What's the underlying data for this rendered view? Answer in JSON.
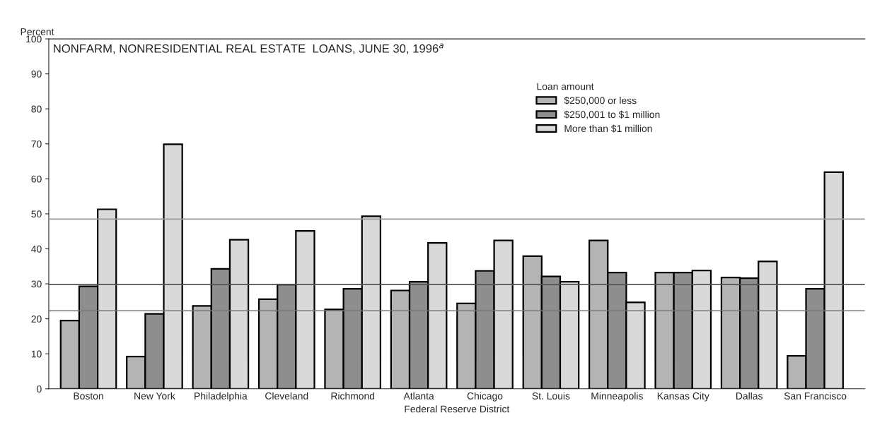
{
  "chart_data": {
    "type": "bar",
    "title": "NONFARM, NONRESIDENTIAL REAL ESTATE  LOANS, JUNE 30, 1996$^{a}$",
    "xlabel": "Federal Reserve District",
    "ylabel": "Percent",
    "legend_title": "Loan amount",
    "categories": [
      "Boston",
      "New York",
      "Philadelphia",
      "Cleveland",
      "Richmond",
      "Atlanta",
      "Chicago",
      "St. Louis",
      "Minneapolis",
      "Kansas City",
      "Dallas",
      "San Francisco"
    ],
    "series": [
      {
        "name": "$250,000 or less",
        "color": "#b4b4b4",
        "values": [
          19.5,
          9.2,
          23.7,
          25.6,
          22.7,
          28.1,
          24.4,
          37.9,
          42.4,
          33.2,
          31.8,
          9.4
        ]
      },
      {
        "name": "$250,001 to $1 million",
        "color": "#8e8e8e",
        "values": [
          29.3,
          21.4,
          34.3,
          29.8,
          28.6,
          30.6,
          33.7,
          32.1,
          33.2,
          33.2,
          31.6,
          28.6
        ]
      },
      {
        "name": "More than $1 million",
        "color": "#d9d9d9",
        "values": [
          51.3,
          69.9,
          42.6,
          45.1,
          49.3,
          41.7,
          42.4,
          30.6,
          24.7,
          33.8,
          36.4,
          61.9
        ]
      }
    ],
    "ref_lines": [
      {
        "axis": "y",
        "value": 48.5,
        "color": "#9a9a9a"
      },
      {
        "axis": "y",
        "value": 29.8,
        "color": "#555555"
      },
      {
        "axis": "y",
        "value": 22.3,
        "color": "#777777"
      }
    ],
    "ylim": [
      0,
      100
    ],
    "yticks": [
      0,
      10,
      20,
      30,
      40,
      50,
      60,
      70,
      80,
      90,
      100
    ],
    "grid": false,
    "legend": "top right"
  }
}
